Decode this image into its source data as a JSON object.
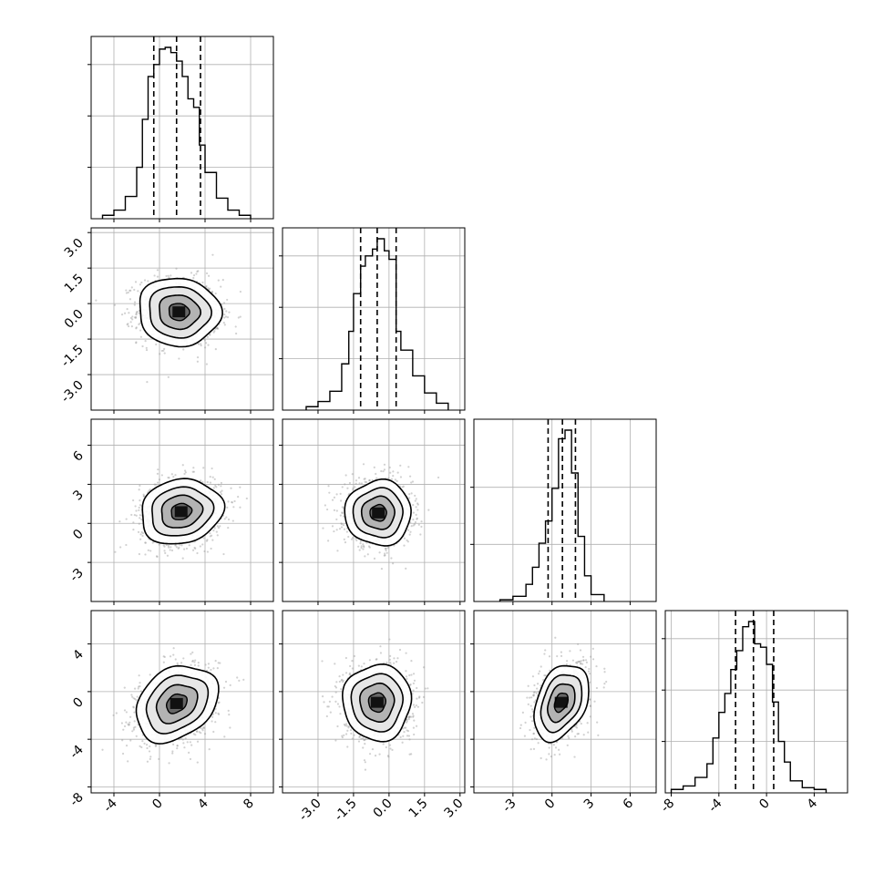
{
  "chart_data": {
    "type": "corner",
    "grid": true,
    "parameters": [
      {
        "axis_range": [
          -6,
          10
        ],
        "ticks": [
          "-4",
          "0",
          "4",
          "8"
        ],
        "quantiles": [
          -0.5,
          1.5,
          3.6
        ],
        "hist": {
          "edges": [
            -5,
            -4,
            -3,
            -2,
            -1.5,
            -1,
            -0.5,
            0,
            0.5,
            1,
            1.5,
            2,
            2.5,
            3,
            3.5,
            4,
            5,
            6,
            7,
            8
          ],
          "counts": [
            0.02,
            0.05,
            0.13,
            0.3,
            0.58,
            0.83,
            0.9,
            0.99,
            1.0,
            0.97,
            0.92,
            0.83,
            0.7,
            0.65,
            0.43,
            0.27,
            0.12,
            0.05,
            0.02
          ]
        }
      },
      {
        "axis_range": [
          -4.5,
          3.2
        ],
        "ticks": [
          "-3.0",
          "-1.5",
          "0.0",
          "1.5",
          "3.0"
        ],
        "quantiles": [
          -1.2,
          -0.5,
          0.3
        ],
        "hist": {
          "edges": [
            -3.5,
            -3,
            -2.5,
            -2,
            -1.7,
            -1.5,
            -1.2,
            -1,
            -0.7,
            -0.5,
            -0.2,
            0,
            0.3,
            0.5,
            1,
            1.5,
            2,
            2.5
          ],
          "counts": [
            0.02,
            0.05,
            0.11,
            0.27,
            0.46,
            0.68,
            0.84,
            0.9,
            0.94,
            1.0,
            0.93,
            0.88,
            0.46,
            0.35,
            0.2,
            0.1,
            0.04
          ]
        }
      },
      {
        "axis_range": [
          -6,
          8
        ],
        "ticks": [
          "-3",
          "0",
          "3",
          "6"
        ],
        "quantiles": [
          -0.3,
          0.8,
          1.8
        ],
        "hist": {
          "edges": [
            -4,
            -3,
            -2,
            -1.5,
            -1,
            -0.5,
            0,
            0.5,
            1,
            1.5,
            2,
            2.5,
            3,
            4
          ],
          "counts": [
            0.01,
            0.03,
            0.1,
            0.2,
            0.34,
            0.47,
            0.66,
            0.95,
            1.0,
            0.75,
            0.38,
            0.15,
            0.04
          ]
        }
      },
      {
        "axis_range": [
          -8.5,
          6.8
        ],
        "ticks": [
          "-8",
          "-4",
          "0",
          "4"
        ],
        "quantiles": [
          -2.6,
          -1.1,
          0.6
        ],
        "hist": {
          "edges": [
            -8,
            -7,
            -6,
            -5,
            -4.5,
            -4,
            -3.5,
            -3,
            -2.5,
            -2,
            -1.5,
            -1,
            -0.5,
            0,
            0.5,
            1,
            1.5,
            2,
            3,
            4,
            5
          ],
          "counts": [
            0.02,
            0.04,
            0.09,
            0.17,
            0.32,
            0.47,
            0.58,
            0.72,
            0.83,
            0.97,
            1.0,
            0.87,
            0.85,
            0.75,
            0.53,
            0.3,
            0.18,
            0.07,
            0.03,
            0.02
          ]
        }
      }
    ],
    "pairs": [
      {
        "row": 1,
        "col": 0,
        "mean": [
          1.7,
          -0.35
        ],
        "sd": [
          1.8,
          0.72
        ],
        "rho": -0.05
      },
      {
        "row": 2,
        "col": 0,
        "mean": [
          1.9,
          0.9
        ],
        "sd": [
          1.8,
          1.25
        ],
        "rho": 0.12
      },
      {
        "row": 2,
        "col": 1,
        "mean": [
          -0.45,
          0.8
        ],
        "sd": [
          0.7,
          1.25
        ],
        "rho": 0.0
      },
      {
        "row": 3,
        "col": 0,
        "mean": [
          1.5,
          -1.0
        ],
        "sd": [
          1.8,
          1.6
        ],
        "rho": 0.28
      },
      {
        "row": 3,
        "col": 1,
        "mean": [
          -0.5,
          -0.9
        ],
        "sd": [
          0.72,
          1.6
        ],
        "rho": 0.0
      },
      {
        "row": 3,
        "col": 2,
        "mean": [
          0.7,
          -0.9
        ],
        "sd": [
          1.05,
          1.6
        ],
        "rho": 0.35
      }
    ]
  }
}
